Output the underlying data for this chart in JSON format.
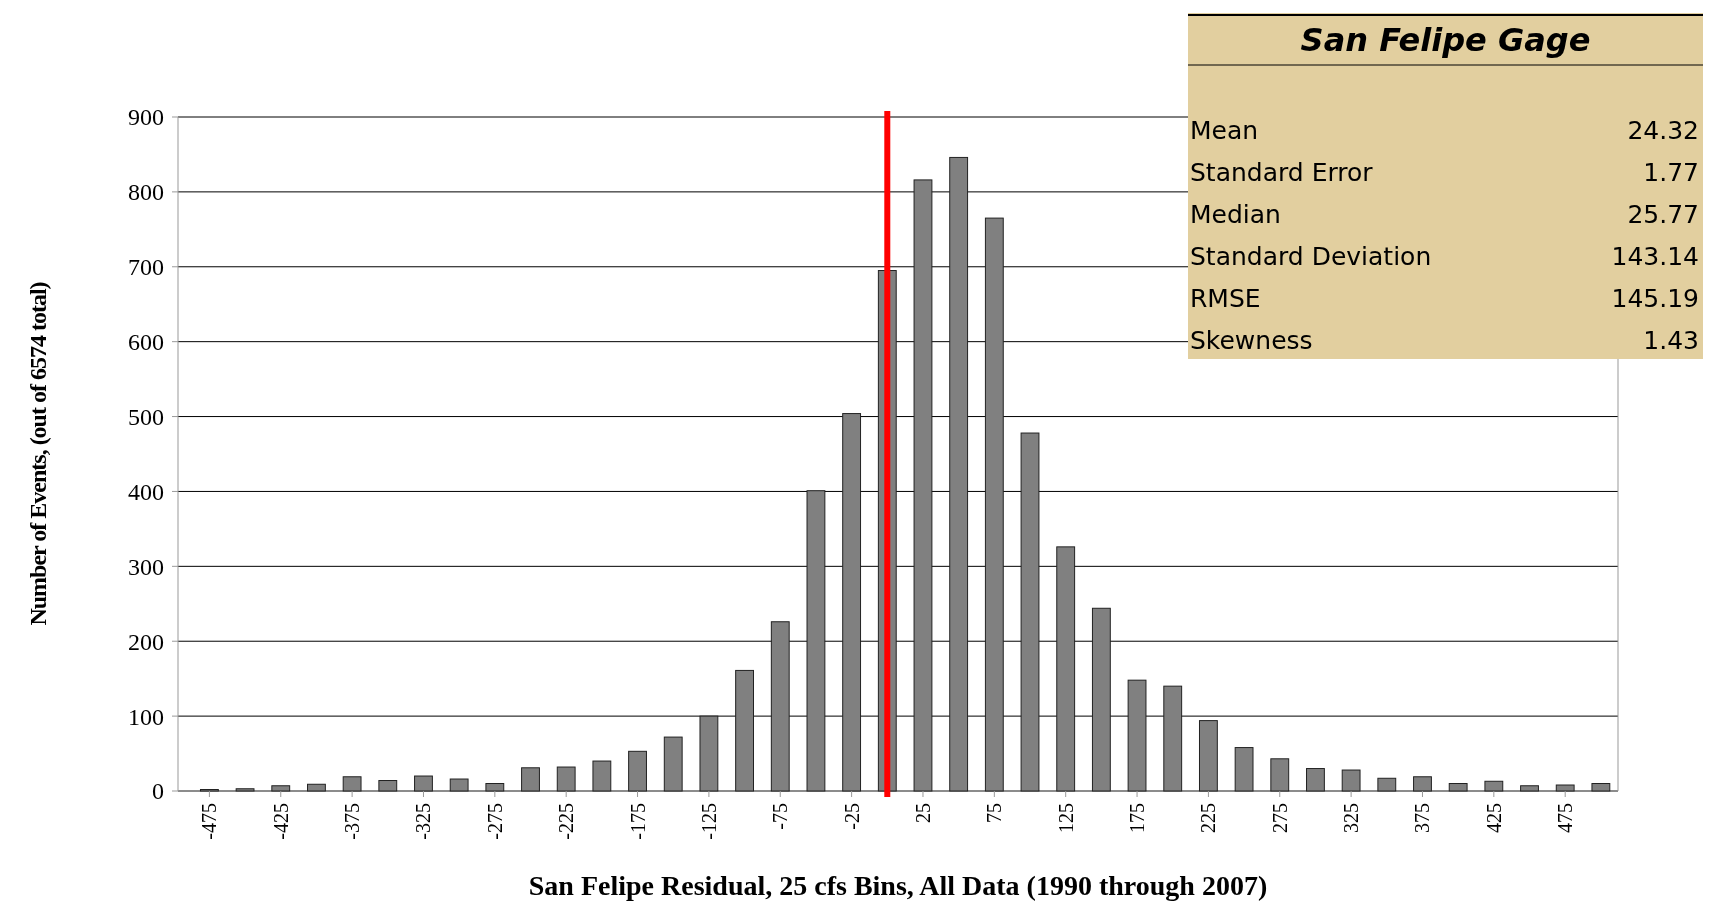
{
  "chart_data": {
    "type": "bar",
    "xlabel": "San Felipe Residual, 25 cfs Bins, All Data (1990 through 2007)",
    "ylabel": "Number of Events, (out of 6574 total)",
    "x": [
      -475,
      -450,
      -425,
      -400,
      -375,
      -350,
      -325,
      -300,
      -275,
      -250,
      -225,
      -200,
      -175,
      -150,
      -125,
      -100,
      -75,
      -50,
      -25,
      0,
      25,
      50,
      75,
      100,
      125,
      150,
      175,
      200,
      225,
      250,
      275,
      300,
      325,
      350,
      375,
      400,
      425,
      450,
      475,
      500
    ],
    "values": [
      2,
      3,
      7,
      9,
      19,
      14,
      20,
      16,
      10,
      31,
      32,
      40,
      53,
      72,
      100,
      161,
      226,
      401,
      504,
      695,
      816,
      846,
      765,
      478,
      326,
      244,
      148,
      140,
      94,
      58,
      43,
      30,
      28,
      17,
      19,
      10,
      13,
      7,
      8,
      10
    ],
    "color": "#808080",
    "xlim": [
      -497,
      512
    ],
    "xticks": [
      -475,
      -425,
      -375,
      -325,
      -275,
      -225,
      -175,
      -125,
      -75,
      -25,
      25,
      75,
      125,
      175,
      225,
      275,
      325,
      375,
      425,
      475
    ],
    "ylim": [
      0,
      900
    ],
    "yticks": [
      0,
      100,
      200,
      300,
      400,
      500,
      600,
      700,
      800,
      900
    ],
    "grid": "y",
    "ref_lines": [
      {
        "axis": "x",
        "value": 0,
        "color": "#ff0000"
      }
    ],
    "annotations": [
      "San Felipe Gage",
      "Mean",
      "24.32",
      "Standard Error",
      "1.77",
      "Median",
      "25.77",
      "Standard Deviation",
      "143.14",
      "RMSE",
      "145.19",
      "Skewness",
      "1.43"
    ]
  }
}
